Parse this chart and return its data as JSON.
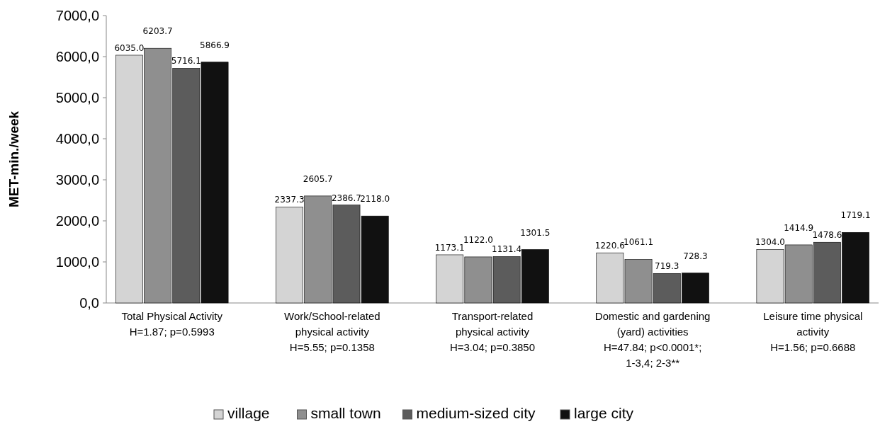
{
  "chart_data": {
    "type": "bar",
    "ylabel": "MET-min./week",
    "categories": [
      "Total Physical Activity\nH=1.87; p=0.5993",
      "Work/School-related physical activity\nH=5.55; p=0.1358",
      "Transport-related physical activity\nH=3.04; p=0.3850",
      "Domestic and gardening (yard) activities\nH=47.84; p<0.0001*; 1-3,4; 2-3**",
      "Leisure time physical activity\nH=1.56; p=0.6688"
    ],
    "series": [
      {
        "name": "village",
        "color": "#d4d4d4",
        "values": [
          6035.0,
          2337.3,
          1173.1,
          1220.6,
          1304.0
        ],
        "value_labels": [
          "6035.0",
          "2337.3",
          "1173.1",
          "1220.6",
          "1304.0"
        ]
      },
      {
        "name": "small town",
        "color": "#8f8f8f",
        "values": [
          6203.7,
          2605.7,
          1122.0,
          1061.1,
          1414.9
        ],
        "value_labels": [
          "6203.7",
          "2605.7",
          "1122.0",
          "1061.1",
          "1414.9"
        ]
      },
      {
        "name": "medium-sized city",
        "color": "#5c5c5c",
        "values": [
          5716.1,
          2386.7,
          1131.4,
          719.3,
          1478.6
        ],
        "value_labels": [
          "5716.1",
          "2386.7",
          "1131.4",
          "719.3",
          "1478.6"
        ]
      },
      {
        "name": "large city",
        "color": "#111111",
        "values": [
          5866.9,
          2118.0,
          1301.5,
          728.3,
          1719.1
        ],
        "value_labels": [
          "5866.9",
          "2118.0",
          "1301.5",
          "728.3",
          "1719.1"
        ]
      }
    ],
    "ylim": [
      0,
      7000
    ],
    "yticks": [
      {
        "value": 0,
        "label": "0,0"
      },
      {
        "value": 1000,
        "label": "1000,0"
      },
      {
        "value": 2000,
        "label": "2000,0"
      },
      {
        "value": 3000,
        "label": "3000,0"
      },
      {
        "value": 4000,
        "label": "4000,0"
      },
      {
        "value": 5000,
        "label": "5000,0"
      },
      {
        "value": 6000,
        "label": "6000,0"
      },
      {
        "value": 7000,
        "label": "7000,0"
      }
    ],
    "legend": "bottom"
  }
}
